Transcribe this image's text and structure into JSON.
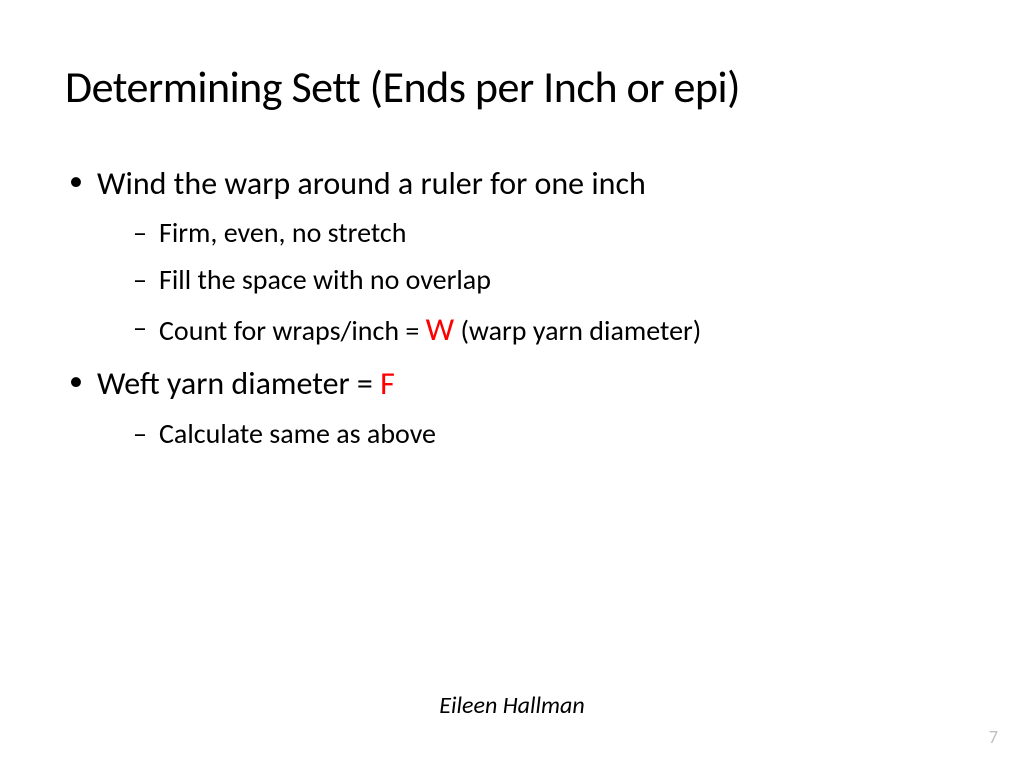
{
  "slide": {
    "title": "Determining Sett (Ends per Inch or epi)",
    "bullets": [
      {
        "text": "Wind the warp around a ruler for one inch",
        "sub": [
          {
            "text": "Firm, even, no stretch"
          },
          {
            "text": "Fill the space with no overlap"
          },
          {
            "pre": "Count for wraps/inch  = ",
            "emph": "W",
            "post": " (warp yarn diameter)"
          }
        ]
      },
      {
        "pre": "Weft yarn diameter = ",
        "emph": "F",
        "sub": [
          {
            "text": "Calculate same as above"
          }
        ]
      }
    ],
    "author": "Eileen Hallman",
    "page_number": "7",
    "colors": {
      "background": "#ffffff",
      "text": "#000000",
      "emphasis": "#ff0000",
      "page_num": "#bfbfbf"
    },
    "typography": {
      "title_fontsize": 44,
      "bullet_fontsize": 32,
      "subbullet_fontsize": 28,
      "author_fontsize": 24,
      "pagenum_fontsize": 18,
      "font_family": "Calibri"
    }
  }
}
